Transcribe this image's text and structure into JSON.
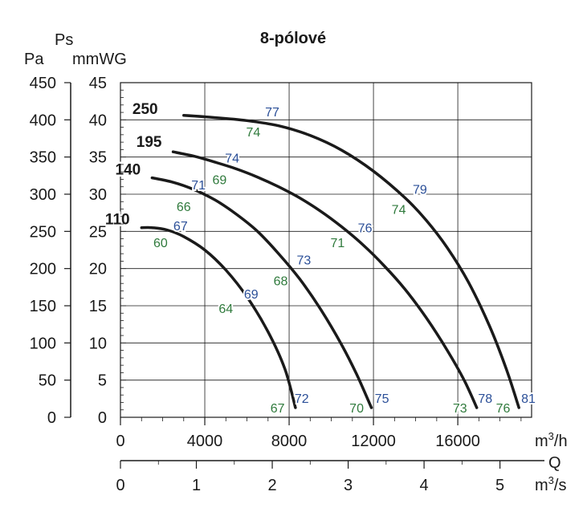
{
  "chart_data": {
    "type": "line",
    "title": "8-pólové",
    "y_units": {
      "pa": "Pa",
      "ps": "Ps",
      "mmwg": "mmWG"
    },
    "x_units": {
      "m3h": "m³/h",
      "q": "Q",
      "m3s": "m³/s"
    },
    "xlim_m3h": [
      0,
      19500
    ],
    "ylim_mmwg": [
      0,
      45
    ],
    "ylim_pa": [
      0,
      450
    ],
    "xlim_m3s": [
      0,
      5.417
    ],
    "ticks_m3h": [
      "0",
      "4000",
      "8000",
      "12000",
      "16000"
    ],
    "ticks_mmwg": [
      "0",
      "5",
      "10",
      "15",
      "20",
      "25",
      "30",
      "35",
      "40",
      "45"
    ],
    "ticks_pa": [
      "0",
      "50",
      "100",
      "150",
      "200",
      "250",
      "300",
      "350",
      "400",
      "450"
    ],
    "ticks_m3s": [
      "0",
      "1",
      "2",
      "3",
      "4",
      "5"
    ],
    "series": [
      {
        "name": "110",
        "points": [
          [
            1000,
            25.5
          ],
          [
            1500,
            25.5
          ],
          [
            2200,
            25.2
          ],
          [
            3000,
            24.3
          ],
          [
            4000,
            22.5
          ],
          [
            5000,
            19.8
          ],
          [
            6000,
            16.2
          ],
          [
            7000,
            11.5
          ],
          [
            7800,
            6.5
          ],
          [
            8300,
            1.3
          ]
        ],
        "efficiency_labels": [
          {
            "text": "60",
            "x": 1900,
            "y": 23.5,
            "class": "green"
          },
          {
            "text": "67",
            "x": 2850,
            "y": 25.8,
            "class": "blue"
          },
          {
            "text": "64",
            "x": 5000,
            "y": 14.7,
            "class": "green"
          },
          {
            "text": "69",
            "x": 6200,
            "y": 16.6,
            "class": "blue"
          },
          {
            "text": "67",
            "x": 7450,
            "y": 1.3,
            "class": "green"
          },
          {
            "text": "72",
            "x": 8600,
            "y": 2.6,
            "class": "blue"
          }
        ]
      },
      {
        "name": "140",
        "points": [
          [
            1500,
            32.2
          ],
          [
            2500,
            31.6
          ],
          [
            3500,
            30.6
          ],
          [
            4500,
            29.2
          ],
          [
            5500,
            27.3
          ],
          [
            6500,
            25.0
          ],
          [
            7500,
            22.0
          ],
          [
            8500,
            18.6
          ],
          [
            9500,
            14.5
          ],
          [
            10500,
            9.7
          ],
          [
            11200,
            5.8
          ],
          [
            11900,
            1.3
          ]
        ],
        "efficiency_labels": [
          {
            "text": "66",
            "x": 3000,
            "y": 28.4,
            "class": "green"
          },
          {
            "text": "68",
            "x": 7600,
            "y": 18.4,
            "class": "green"
          },
          {
            "text": "73",
            "x": 8700,
            "y": 21.2,
            "class": "blue"
          },
          {
            "text": "70",
            "x": 11200,
            "y": 1.3,
            "class": "green"
          },
          {
            "text": "75",
            "x": 12400,
            "y": 2.6,
            "class": "blue"
          }
        ]
      },
      {
        "name": "195",
        "points": [
          [
            2500,
            35.7
          ],
          [
            3500,
            35.1
          ],
          [
            4500,
            34.3
          ],
          [
            5500,
            33.4
          ],
          [
            6500,
            32.3
          ],
          [
            7500,
            31.0
          ],
          [
            8500,
            29.5
          ],
          [
            9500,
            27.7
          ],
          [
            10500,
            25.6
          ],
          [
            11500,
            23.2
          ],
          [
            12500,
            20.4
          ],
          [
            13500,
            17.2
          ],
          [
            14500,
            13.4
          ],
          [
            15500,
            9.0
          ],
          [
            16300,
            5.0
          ],
          [
            16900,
            1.3
          ]
        ],
        "efficiency_labels": [
          {
            "text": "71",
            "x": 3700,
            "y": 31.3,
            "class": "blue"
          },
          {
            "text": "69",
            "x": 4700,
            "y": 32.0,
            "class": "green"
          },
          {
            "text": "74",
            "x": 5300,
            "y": 34.9,
            "class": "blue"
          },
          {
            "text": "71",
            "x": 10300,
            "y": 23.5,
            "class": "green"
          },
          {
            "text": "76",
            "x": 11600,
            "y": 25.5,
            "class": "blue"
          },
          {
            "text": "73",
            "x": 16100,
            "y": 1.3,
            "class": "green"
          },
          {
            "text": "78",
            "x": 17300,
            "y": 2.6,
            "class": "blue"
          }
        ]
      },
      {
        "name": "250",
        "points": [
          [
            3000,
            40.6
          ],
          [
            4500,
            40.3
          ],
          [
            6000,
            39.9
          ],
          [
            7500,
            39.2
          ],
          [
            9000,
            37.9
          ],
          [
            10500,
            35.9
          ],
          [
            12000,
            33.1
          ],
          [
            13500,
            29.5
          ],
          [
            14500,
            26.5
          ],
          [
            15500,
            22.8
          ],
          [
            16500,
            18.2
          ],
          [
            17500,
            12.3
          ],
          [
            18300,
            6.5
          ],
          [
            18900,
            1.3
          ]
        ],
        "efficiency_labels": [
          {
            "text": "77",
            "x": 7200,
            "y": 41.1,
            "class": "blue"
          },
          {
            "text": "74",
            "x": 6300,
            "y": 38.4,
            "class": "green"
          },
          {
            "text": "79",
            "x": 14200,
            "y": 30.7,
            "class": "blue"
          },
          {
            "text": "74",
            "x": 13200,
            "y": 28.0,
            "class": "green"
          },
          {
            "text": "76",
            "x": 18150,
            "y": 1.3,
            "class": "green"
          },
          {
            "text": "81",
            "x": 19350,
            "y": 2.6,
            "class": "blue"
          }
        ]
      }
    ],
    "colors": {
      "curve": "#1a1a1a",
      "green": "#2f7a3c",
      "blue": "#2b4f98",
      "grid": "#1a1a1a"
    }
  }
}
